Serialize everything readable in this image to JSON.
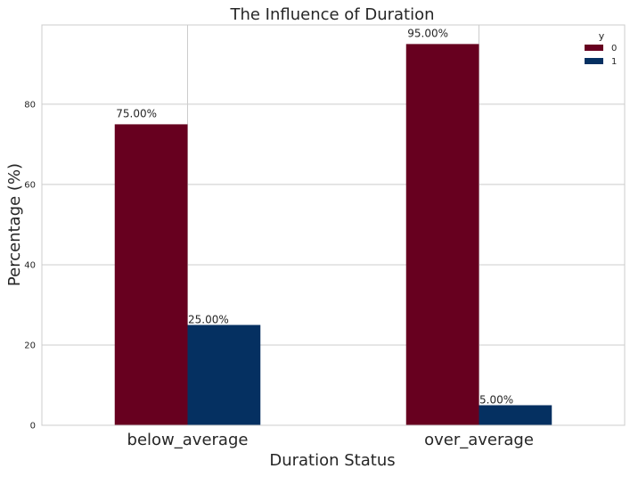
{
  "chart_data": {
    "type": "bar",
    "title": "The Influence of Duration",
    "xlabel": "Duration Status",
    "ylabel": "Percentage (%)",
    "categories": [
      "below_average",
      "over_average"
    ],
    "series": [
      {
        "name": "0",
        "color": "#67001f",
        "values": [
          75.0,
          95.0
        ]
      },
      {
        "name": "1",
        "color": "#053061",
        "values": [
          25.0,
          5.0
        ]
      }
    ],
    "data_labels": [
      [
        "75.00%",
        "95.00%"
      ],
      [
        "25.00%",
        "5.00%"
      ]
    ],
    "ylim": [
      0,
      99.75
    ],
    "yticks": [
      0,
      20,
      40,
      60,
      80
    ],
    "grid": true,
    "legend": {
      "title": "y",
      "position": "top-right"
    }
  }
}
